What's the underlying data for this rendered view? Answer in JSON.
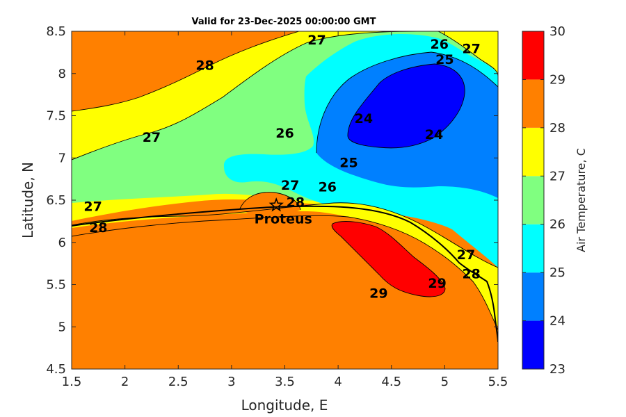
{
  "chart_data": {
    "type": "heatmap",
    "subtype": "filled-contour-map",
    "title": "Valid for 23-Dec-2025 00:00:00 GMT",
    "xlabel": "Longitude, E",
    "ylabel": "Latitude, N",
    "xlim": [
      1.5,
      5.5
    ],
    "ylim": [
      4.5,
      8.5
    ],
    "xticks": [
      1.5,
      2,
      2.5,
      3,
      3.5,
      4,
      4.5,
      5,
      5.5
    ],
    "yticks": [
      4.5,
      5,
      5.5,
      6,
      6.5,
      7,
      7.5,
      8,
      8.5
    ],
    "colorbar": {
      "label": "Air Temperature, C",
      "levels": [
        23,
        24,
        25,
        26,
        27,
        28,
        29,
        30
      ],
      "colors": [
        "#0000ff",
        "#0080ff",
        "#00ffff",
        "#80ff80",
        "#ffff00",
        "#ff8000",
        "#ff0000",
        "#800000"
      ]
    },
    "contour_labels": [
      {
        "value": "28",
        "lon": 2.75,
        "lat": 8.1
      },
      {
        "value": "27",
        "lon": 3.8,
        "lat": 8.4
      },
      {
        "value": "26",
        "lon": 4.95,
        "lat": 8.35
      },
      {
        "value": "27",
        "lon": 5.25,
        "lat": 8.3
      },
      {
        "value": "25",
        "lon": 5.0,
        "lat": 8.17
      },
      {
        "value": "27",
        "lon": 2.25,
        "lat": 7.25
      },
      {
        "value": "26",
        "lon": 3.5,
        "lat": 7.3
      },
      {
        "value": "24",
        "lon": 4.24,
        "lat": 7.47
      },
      {
        "value": "24",
        "lon": 4.9,
        "lat": 7.28
      },
      {
        "value": "25",
        "lon": 4.1,
        "lat": 6.95
      },
      {
        "value": "27",
        "lon": 3.55,
        "lat": 6.68
      },
      {
        "value": "26",
        "lon": 3.9,
        "lat": 6.66
      },
      {
        "value": "28",
        "lon": 3.6,
        "lat": 6.48
      },
      {
        "value": "27",
        "lon": 1.7,
        "lat": 6.43
      },
      {
        "value": "28",
        "lon": 1.75,
        "lat": 6.18
      },
      {
        "value": "27",
        "lon": 5.2,
        "lat": 5.86
      },
      {
        "value": "28",
        "lon": 5.25,
        "lat": 5.63
      },
      {
        "value": "29",
        "lon": 4.38,
        "lat": 5.4
      },
      {
        "value": "29",
        "lon": 4.93,
        "lat": 5.52
      }
    ],
    "markers": [
      {
        "name": "Proteus",
        "lon": 3.42,
        "lat": 6.44
      }
    ],
    "grid": false
  }
}
